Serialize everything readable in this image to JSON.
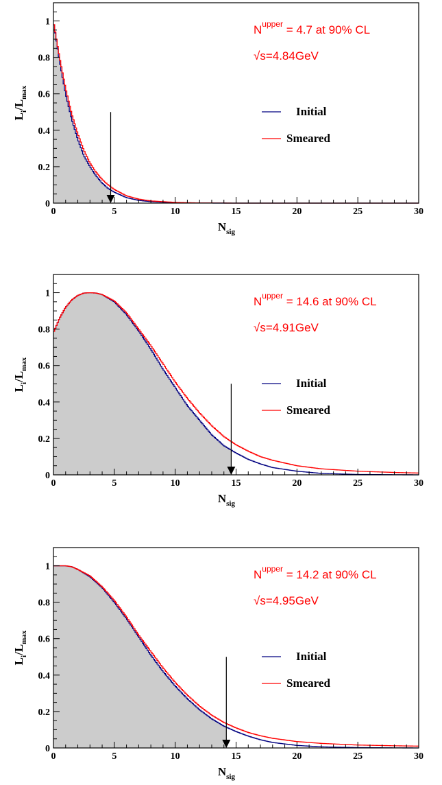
{
  "chart_data": [
    {
      "type": "line",
      "xlabel": "N",
      "xlabel_sub": "sig",
      "ylabel": "L",
      "ylabel_sub1": "i",
      "ylabel_mid": "/L",
      "ylabel_sub2": "max",
      "xlim": [
        0,
        30
      ],
      "ylim": [
        0,
        1.1
      ],
      "x_ticks": [
        "0",
        "5",
        "10",
        "15",
        "20",
        "25",
        "30"
      ],
      "y_ticks": [
        "0",
        "0.2",
        "0.4",
        "0.6",
        "0.8",
        "1"
      ],
      "annotation_main": "N",
      "annotation_sup": "upper",
      "annotation_rest": " = 4.7 at 90% CL",
      "energy_label": "√s=4.84GeV",
      "upper_limit": 4.7,
      "legend_position": "right",
      "series": [
        {
          "name": "Initial",
          "color": "#000080",
          "x": [
            0,
            0.25,
            0.5,
            1,
            1.5,
            2,
            2.5,
            3,
            3.5,
            4,
            4.5,
            5,
            6,
            7,
            8,
            10,
            12,
            15,
            20,
            30
          ],
          "y": [
            1.0,
            0.89,
            0.78,
            0.6,
            0.46,
            0.35,
            0.26,
            0.2,
            0.15,
            0.11,
            0.08,
            0.06,
            0.03,
            0.015,
            0.008,
            0.002,
            0.0005,
            0,
            0,
            0
          ]
        },
        {
          "name": "Smeared",
          "color": "#ff0000",
          "x": [
            0,
            0.25,
            0.5,
            1,
            1.5,
            2,
            2.5,
            3,
            3.5,
            4,
            4.5,
            5,
            6,
            7,
            8,
            10,
            12,
            15,
            20,
            30
          ],
          "y": [
            1.0,
            0.9,
            0.8,
            0.63,
            0.49,
            0.38,
            0.29,
            0.22,
            0.17,
            0.13,
            0.1,
            0.075,
            0.04,
            0.022,
            0.012,
            0.004,
            0.001,
            0,
            0,
            0
          ]
        }
      ]
    },
    {
      "type": "line",
      "xlabel": "N",
      "xlabel_sub": "sig",
      "ylabel": "L",
      "ylabel_sub1": "i",
      "ylabel_mid": "/L",
      "ylabel_sub2": "max",
      "xlim": [
        0,
        30
      ],
      "ylim": [
        0,
        1.1
      ],
      "x_ticks": [
        "0",
        "5",
        "10",
        "15",
        "20",
        "25",
        "30"
      ],
      "y_ticks": [
        "0",
        "0.2",
        "0.4",
        "0.6",
        "0.8",
        "1"
      ],
      "annotation_main": "N",
      "annotation_sup": "upper",
      "annotation_rest": " = 14.6 at 90% CL",
      "energy_label": "√s=4.91GeV",
      "upper_limit": 14.6,
      "legend_position": "right",
      "series": [
        {
          "name": "Initial",
          "color": "#000080",
          "x": [
            0,
            0.5,
            1,
            1.5,
            2,
            2.5,
            3,
            3.5,
            4,
            5,
            6,
            7,
            8,
            9,
            10,
            11,
            12,
            13,
            14,
            15,
            16,
            17,
            18,
            20,
            22,
            25,
            28,
            30
          ],
          "y": [
            0.78,
            0.86,
            0.92,
            0.96,
            0.985,
            0.998,
            1.0,
            0.998,
            0.99,
            0.95,
            0.88,
            0.79,
            0.69,
            0.58,
            0.48,
            0.38,
            0.3,
            0.22,
            0.16,
            0.12,
            0.085,
            0.06,
            0.04,
            0.02,
            0.008,
            0.002,
            0.0005,
            0
          ]
        },
        {
          "name": "Smeared",
          "color": "#ff0000",
          "x": [
            0,
            0.5,
            1,
            1.5,
            2,
            2.5,
            3,
            3.5,
            4,
            5,
            6,
            7,
            8,
            9,
            10,
            11,
            12,
            13,
            14,
            15,
            16,
            17,
            18,
            20,
            22,
            25,
            28,
            30
          ],
          "y": [
            0.78,
            0.86,
            0.92,
            0.96,
            0.985,
            0.998,
            1.0,
            0.998,
            0.99,
            0.955,
            0.89,
            0.8,
            0.71,
            0.61,
            0.51,
            0.42,
            0.34,
            0.27,
            0.21,
            0.165,
            0.13,
            0.1,
            0.08,
            0.05,
            0.033,
            0.02,
            0.013,
            0.01
          ]
        }
      ]
    },
    {
      "type": "line",
      "xlabel": "N",
      "xlabel_sub": "sig",
      "ylabel": "L",
      "ylabel_sub1": "i",
      "ylabel_mid": "/L",
      "ylabel_sub2": "max",
      "xlim": [
        0,
        30
      ],
      "ylim": [
        0,
        1.1
      ],
      "x_ticks": [
        "0",
        "5",
        "10",
        "15",
        "20",
        "25",
        "30"
      ],
      "y_ticks": [
        "0",
        "0.2",
        "0.4",
        "0.6",
        "0.8",
        "1"
      ],
      "annotation_main": "N",
      "annotation_sup": "upper",
      "annotation_rest": " = 14.2 at 90% CL",
      "energy_label": "√s=4.95GeV",
      "upper_limit": 14.2,
      "legend_position": "right",
      "series": [
        {
          "name": "Initial",
          "color": "#000080",
          "x": [
            0,
            0.5,
            1,
            1.5,
            2,
            3,
            4,
            5,
            6,
            7,
            8,
            9,
            10,
            11,
            12,
            13,
            14,
            15,
            16,
            17,
            18,
            20,
            22,
            25,
            28,
            30
          ],
          "y": [
            1.0,
            1.0,
            1.0,
            0.995,
            0.98,
            0.94,
            0.88,
            0.8,
            0.71,
            0.61,
            0.51,
            0.42,
            0.34,
            0.27,
            0.21,
            0.16,
            0.12,
            0.09,
            0.065,
            0.045,
            0.03,
            0.014,
            0.006,
            0.002,
            0.0005,
            0
          ]
        },
        {
          "name": "Smeared",
          "color": "#ff0000",
          "x": [
            0,
            0.5,
            1,
            1.5,
            2,
            3,
            4,
            5,
            6,
            7,
            8,
            9,
            10,
            11,
            12,
            13,
            14,
            15,
            16,
            17,
            18,
            20,
            22,
            25,
            28,
            30
          ],
          "y": [
            1.0,
            1.0,
            1.0,
            0.995,
            0.98,
            0.945,
            0.885,
            0.81,
            0.72,
            0.62,
            0.53,
            0.44,
            0.36,
            0.29,
            0.23,
            0.18,
            0.14,
            0.11,
            0.085,
            0.067,
            0.053,
            0.035,
            0.025,
            0.016,
            0.012,
            0.01
          ]
        }
      ]
    }
  ]
}
